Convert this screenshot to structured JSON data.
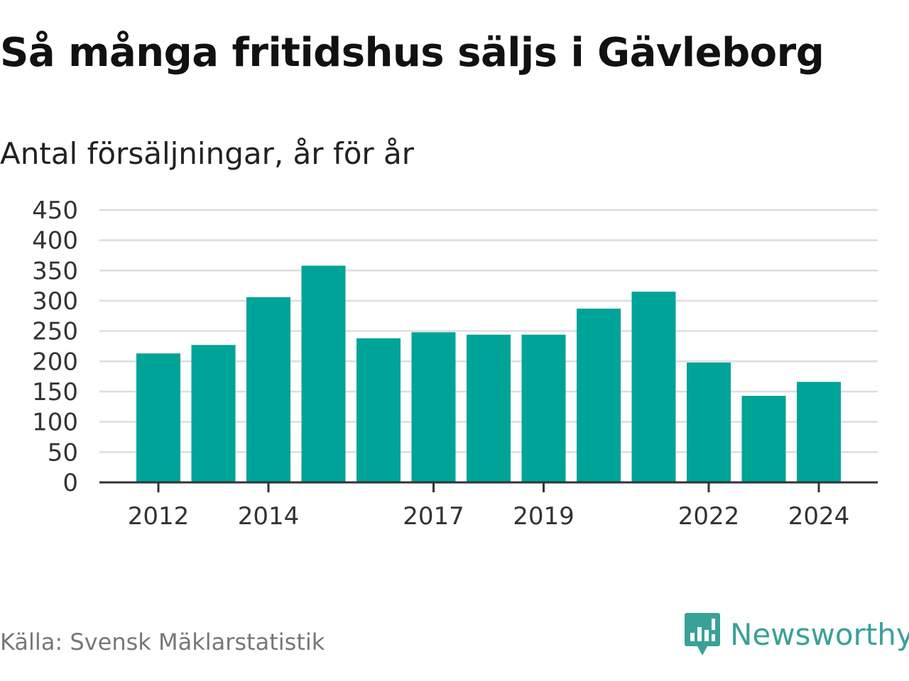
{
  "header": {
    "title": "Så många fritidshus säljs i Gävleborg",
    "subtitle": "Antal försäljningar, år för år"
  },
  "footer": {
    "source": "Källa: Svensk Mäklarstatistik",
    "brand": "Newsworthy",
    "brand_icon": "bar-chart-speech-bubble-icon"
  },
  "colors": {
    "bar": "#00a398",
    "grid": "#dddddd",
    "axis": "#333333",
    "brand": "#3aa198"
  },
  "chart_data": {
    "type": "bar",
    "categories": [
      "2012",
      "2013",
      "2014",
      "2015",
      "2016",
      "2017",
      "2018",
      "2019",
      "2020",
      "2021",
      "2022",
      "2023",
      "2024"
    ],
    "x_tick_labels": [
      "2012",
      "2014",
      "2017",
      "2019",
      "2022",
      "2024"
    ],
    "values": [
      213,
      227,
      306,
      358,
      238,
      248,
      244,
      244,
      287,
      315,
      198,
      143,
      166
    ],
    "title": "Så många fritidshus säljs i Gävleborg",
    "subtitle": "Antal försäljningar, år för år",
    "xlabel": "",
    "ylabel": "",
    "ylim": [
      0,
      450
    ],
    "yticks": [
      0,
      50,
      100,
      150,
      200,
      250,
      300,
      350,
      400,
      450
    ],
    "grid": true,
    "legend": "none"
  }
}
